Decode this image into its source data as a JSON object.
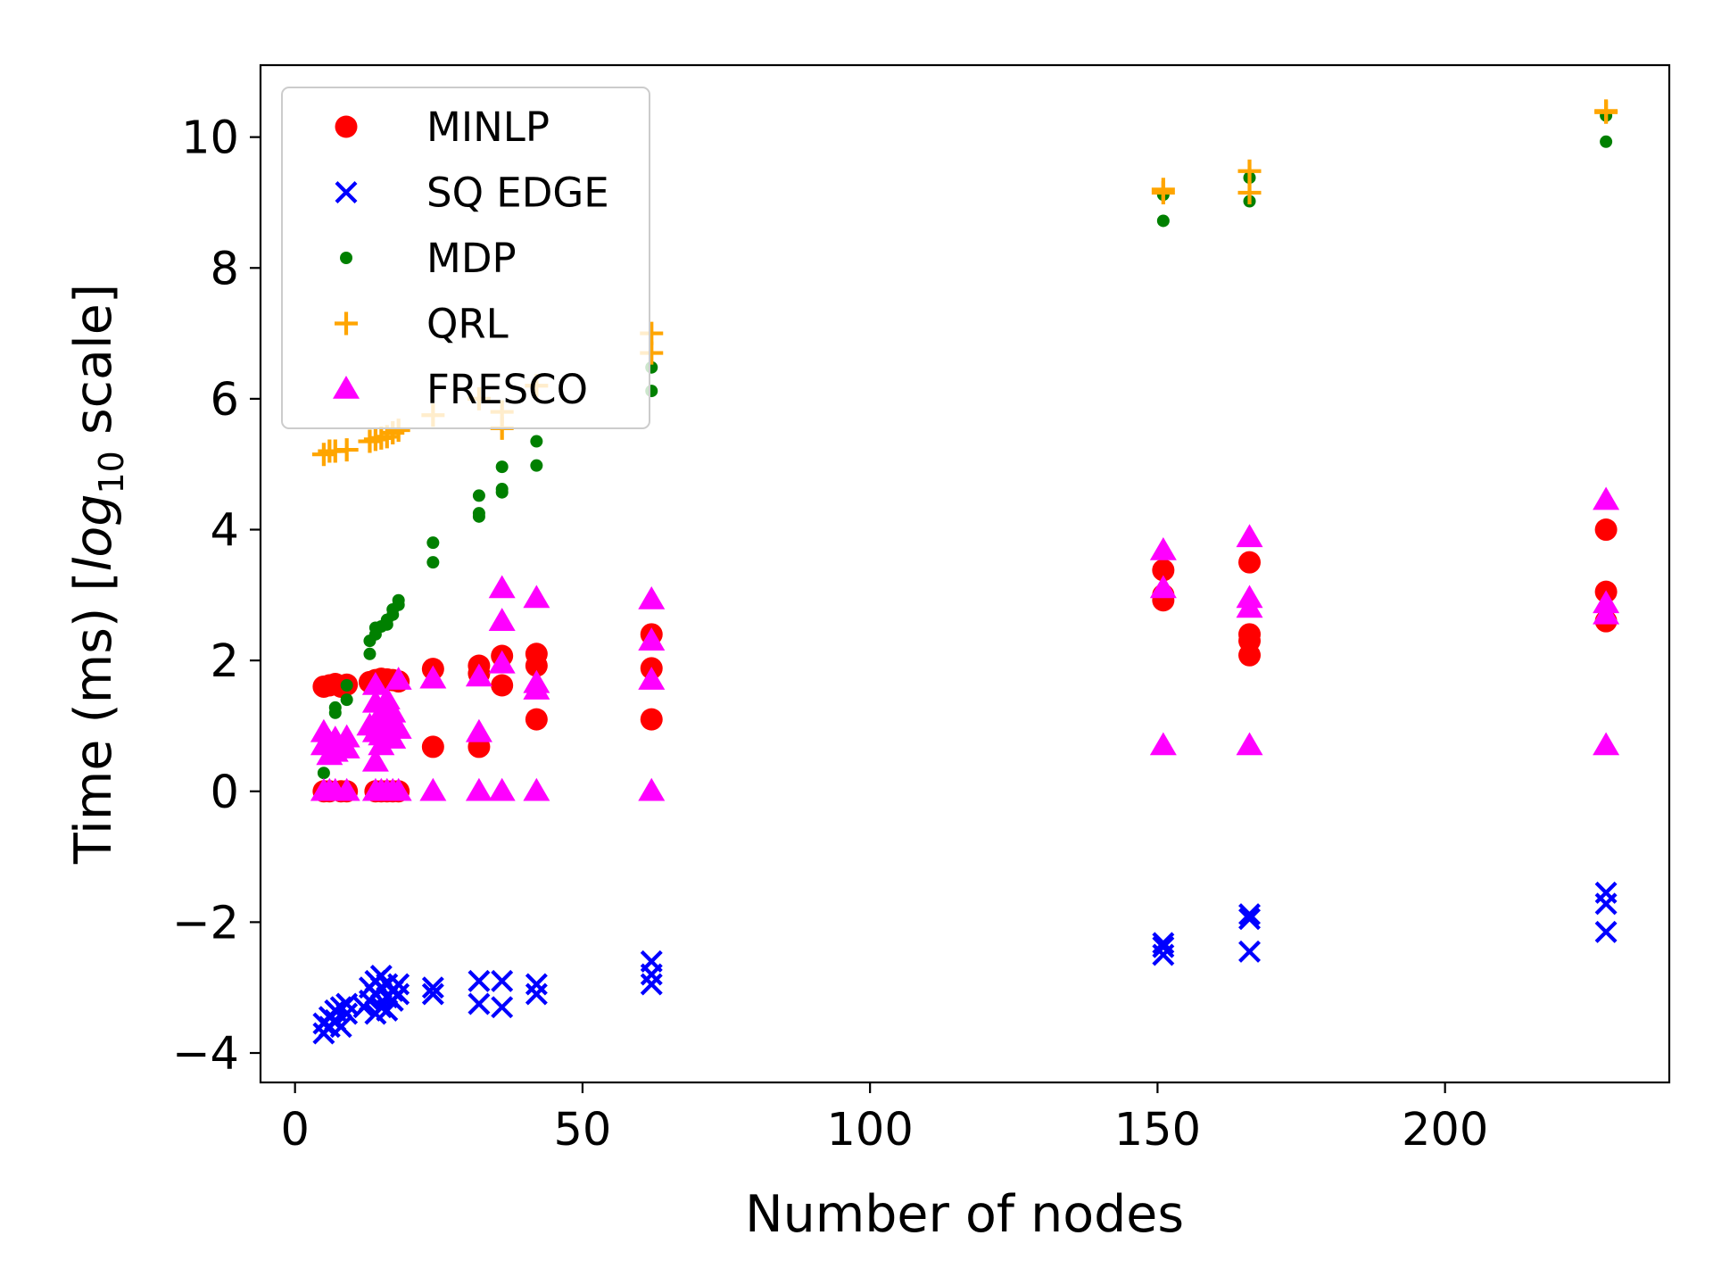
{
  "chart_data": {
    "type": "scatter",
    "xlabel": "Number of nodes",
    "ylabel": "Time (ms) [log10 scale]",
    "ylabel_parts": {
      "prefix": "Time (ms) [",
      "log": "log",
      "sub": "10",
      "suffix": " scale]"
    },
    "xlim": [
      -6,
      239
    ],
    "ylim": [
      -4.45,
      11.1
    ],
    "xticks": [
      0,
      50,
      100,
      150,
      200
    ],
    "xtick_labels": [
      "0",
      "50",
      "100",
      "150",
      "200"
    ],
    "yticks": [
      -4,
      -2,
      0,
      2,
      4,
      6,
      8,
      10
    ],
    "ytick_labels": [
      "−4",
      "−2",
      "0",
      "2",
      "4",
      "6",
      "8",
      "10"
    ],
    "grid": false,
    "legend_position": "top-left",
    "series": [
      {
        "name": "MINLP",
        "marker": "circle",
        "color": "#ff0000",
        "points": [
          [
            5,
            1.6
          ],
          [
            6,
            1.62
          ],
          [
            7,
            1.64
          ],
          [
            8,
            1.6
          ],
          [
            9,
            1.63
          ],
          [
            13,
            1.67
          ],
          [
            14,
            1.7
          ],
          [
            15,
            1.72
          ],
          [
            16,
            1.71
          ],
          [
            17,
            1.7
          ],
          [
            18,
            1.68
          ],
          [
            5,
            0.0
          ],
          [
            6,
            0.0
          ],
          [
            8,
            0.0
          ],
          [
            9,
            0.0
          ],
          [
            14,
            0.0
          ],
          [
            15,
            0.0
          ],
          [
            16,
            0.0
          ],
          [
            17,
            0.0
          ],
          [
            18,
            0.0
          ],
          [
            24,
            1.87
          ],
          [
            24,
            0.68
          ],
          [
            32,
            1.92
          ],
          [
            32,
            1.8
          ],
          [
            32,
            0.68
          ],
          [
            36,
            2.07
          ],
          [
            36,
            1.62
          ],
          [
            42,
            2.1
          ],
          [
            42,
            1.92
          ],
          [
            42,
            1.1
          ],
          [
            62,
            2.4
          ],
          [
            62,
            1.88
          ],
          [
            62,
            1.1
          ],
          [
            151,
            3.38
          ],
          [
            151,
            3.0
          ],
          [
            151,
            2.92
          ],
          [
            166,
            3.5
          ],
          [
            166,
            2.4
          ],
          [
            166,
            2.3
          ],
          [
            166,
            2.08
          ],
          [
            228,
            4.0
          ],
          [
            228,
            3.05
          ],
          [
            228,
            2.6
          ]
        ]
      },
      {
        "name": "SQ EDGE",
        "marker": "x",
        "color": "#0000ff",
        "points": [
          [
            5,
            -3.7
          ],
          [
            5,
            -3.55
          ],
          [
            6,
            -3.6
          ],
          [
            6,
            -3.45
          ],
          [
            7,
            -3.5
          ],
          [
            7,
            -3.35
          ],
          [
            8,
            -3.6
          ],
          [
            8,
            -3.3
          ],
          [
            9,
            -3.4
          ],
          [
            9,
            -3.25
          ],
          [
            12,
            -3.3
          ],
          [
            13,
            -3.2
          ],
          [
            13,
            -3.0
          ],
          [
            14,
            -3.4
          ],
          [
            14,
            -3.1
          ],
          [
            14,
            -2.9
          ],
          [
            15,
            -3.3
          ],
          [
            15,
            -3.0
          ],
          [
            15,
            -2.82
          ],
          [
            16,
            -3.35
          ],
          [
            16,
            -3.15
          ],
          [
            16,
            -2.95
          ],
          [
            17,
            -3.2
          ],
          [
            17,
            -3.05
          ],
          [
            18,
            -3.1
          ],
          [
            18,
            -2.95
          ],
          [
            24,
            -3.1
          ],
          [
            24,
            -3.0
          ],
          [
            32,
            -3.25
          ],
          [
            32,
            -2.9
          ],
          [
            36,
            -3.3
          ],
          [
            36,
            -2.9
          ],
          [
            42,
            -3.1
          ],
          [
            42,
            -2.95
          ],
          [
            62,
            -2.95
          ],
          [
            62,
            -2.8
          ],
          [
            62,
            -2.6
          ],
          [
            151,
            -2.5
          ],
          [
            151,
            -2.38
          ],
          [
            151,
            -2.32
          ],
          [
            166,
            -2.45
          ],
          [
            166,
            -1.95
          ],
          [
            166,
            -1.88
          ],
          [
            228,
            -2.15
          ],
          [
            228,
            -1.72
          ],
          [
            228,
            -1.55
          ]
        ]
      },
      {
        "name": "MDP",
        "marker": "dot",
        "color": "#008000",
        "points": [
          [
            5,
            0.0
          ],
          [
            5,
            0.28
          ],
          [
            7,
            1.2
          ],
          [
            7,
            1.28
          ],
          [
            9,
            1.4
          ],
          [
            9,
            1.62
          ],
          [
            13,
            2.1
          ],
          [
            13,
            2.3
          ],
          [
            14,
            2.4
          ],
          [
            14,
            2.5
          ],
          [
            15,
            2.52
          ],
          [
            16,
            2.55
          ],
          [
            16,
            2.62
          ],
          [
            17,
            2.7
          ],
          [
            17,
            2.78
          ],
          [
            18,
            2.85
          ],
          [
            18,
            2.92
          ],
          [
            24,
            3.5
          ],
          [
            24,
            3.8
          ],
          [
            32,
            4.2
          ],
          [
            32,
            4.25
          ],
          [
            32,
            4.52
          ],
          [
            36,
            4.57
          ],
          [
            36,
            4.62
          ],
          [
            36,
            4.96
          ],
          [
            42,
            4.98
          ],
          [
            42,
            5.35
          ],
          [
            62,
            6.12
          ],
          [
            62,
            6.48
          ],
          [
            151,
            8.72
          ],
          [
            151,
            9.12
          ],
          [
            166,
            9.02
          ],
          [
            166,
            9.38
          ],
          [
            228,
            9.93
          ],
          [
            228,
            10.33
          ]
        ]
      },
      {
        "name": "QRL",
        "marker": "plus",
        "color": "#ffa500",
        "points": [
          [
            5,
            5.15
          ],
          [
            6,
            5.2
          ],
          [
            7,
            5.2
          ],
          [
            9,
            5.22
          ],
          [
            13,
            5.35
          ],
          [
            14,
            5.38
          ],
          [
            15,
            5.4
          ],
          [
            16,
            5.42
          ],
          [
            17,
            5.48
          ],
          [
            18,
            5.52
          ],
          [
            24,
            5.75
          ],
          [
            32,
            6.0
          ],
          [
            36,
            5.55
          ],
          [
            36,
            5.8
          ],
          [
            42,
            6.2
          ],
          [
            62,
            6.7
          ],
          [
            62,
            7.0
          ],
          [
            151,
            9.15
          ],
          [
            151,
            9.2
          ],
          [
            166,
            9.15
          ],
          [
            166,
            9.48
          ],
          [
            228,
            10.38
          ],
          [
            228,
            10.4
          ]
        ]
      },
      {
        "name": "FRESCO",
        "marker": "triangle",
        "color": "#ff00ff",
        "points": [
          [
            5,
            0.9
          ],
          [
            5,
            0.7
          ],
          [
            6,
            0.75
          ],
          [
            6,
            0.55
          ],
          [
            7,
            0.8
          ],
          [
            7,
            0.6
          ],
          [
            9,
            0.82
          ],
          [
            9,
            0.65
          ],
          [
            5,
            0.0
          ],
          [
            6,
            0.0
          ],
          [
            7,
            0.0
          ],
          [
            9,
            0.0
          ],
          [
            13,
            1.0
          ],
          [
            14,
            1.62
          ],
          [
            14,
            1.35
          ],
          [
            14,
            0.9
          ],
          [
            14,
            0.45
          ],
          [
            15,
            1.2
          ],
          [
            15,
            0.85
          ],
          [
            15,
            0.7
          ],
          [
            16,
            1.4
          ],
          [
            16,
            1.1
          ],
          [
            16,
            0.95
          ],
          [
            17,
            1.2
          ],
          [
            17,
            0.8
          ],
          [
            18,
            1.7
          ],
          [
            18,
            0.95
          ],
          [
            14,
            0.0
          ],
          [
            15,
            0.0
          ],
          [
            16,
            0.0
          ],
          [
            17,
            0.0
          ],
          [
            18,
            0.0
          ],
          [
            24,
            1.72
          ],
          [
            24,
            0.0
          ],
          [
            32,
            1.75
          ],
          [
            32,
            0.9
          ],
          [
            32,
            0.0
          ],
          [
            36,
            3.1
          ],
          [
            36,
            2.6
          ],
          [
            36,
            1.95
          ],
          [
            36,
            0.0
          ],
          [
            42,
            2.95
          ],
          [
            42,
            1.65
          ],
          [
            42,
            1.55
          ],
          [
            42,
            0.0
          ],
          [
            62,
            2.93
          ],
          [
            62,
            2.3
          ],
          [
            62,
            1.7
          ],
          [
            62,
            0.0
          ],
          [
            151,
            3.68
          ],
          [
            151,
            3.1
          ],
          [
            151,
            0.7
          ],
          [
            166,
            3.88
          ],
          [
            166,
            2.95
          ],
          [
            166,
            2.8
          ],
          [
            166,
            0.7
          ],
          [
            228,
            4.45
          ],
          [
            228,
            2.87
          ],
          [
            228,
            2.7
          ],
          [
            228,
            0.7
          ]
        ]
      }
    ]
  }
}
